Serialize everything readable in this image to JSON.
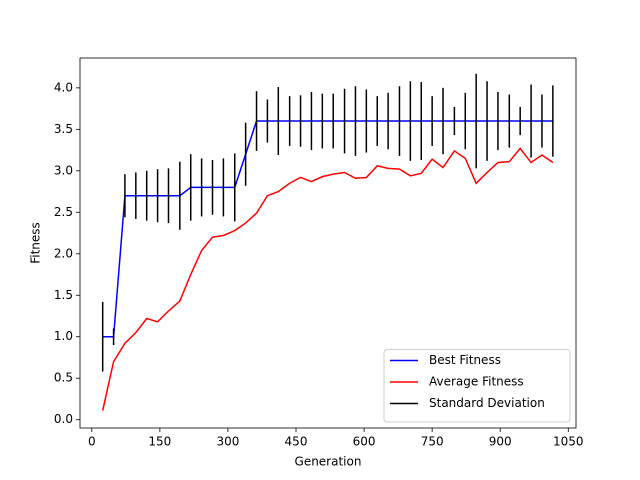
{
  "chart_data": {
    "type": "line",
    "xlabel": "Generation",
    "ylabel": "Fitness",
    "x": [
      24,
      48,
      73,
      97,
      121,
      145,
      169,
      194,
      218,
      242,
      266,
      290,
      315,
      339,
      363,
      387,
      411,
      436,
      460,
      484,
      508,
      532,
      557,
      581,
      605,
      629,
      653,
      678,
      702,
      726,
      750,
      774,
      799,
      823,
      847,
      871,
      895,
      920,
      944,
      968,
      992,
      1016
    ],
    "series": [
      {
        "name": "Best Fitness",
        "color": "#0000ff",
        "type": "line",
        "values": [
          1.0,
          1.0,
          2.7,
          2.7,
          2.7,
          2.7,
          2.7,
          2.7,
          2.8,
          2.8,
          2.8,
          2.8,
          2.8,
          3.2,
          3.6,
          3.6,
          3.6,
          3.6,
          3.6,
          3.6,
          3.6,
          3.6,
          3.6,
          3.6,
          3.6,
          3.6,
          3.6,
          3.6,
          3.6,
          3.6,
          3.6,
          3.6,
          3.6,
          3.6,
          3.6,
          3.6,
          3.6,
          3.6,
          3.6,
          3.6,
          3.6,
          3.6
        ]
      },
      {
        "name": "Average Fitness",
        "color": "#ff0000",
        "type": "line",
        "values": [
          0.11,
          0.7,
          0.92,
          1.05,
          1.22,
          1.18,
          1.31,
          1.43,
          1.75,
          2.04,
          2.2,
          2.22,
          2.28,
          2.37,
          2.49,
          2.7,
          2.75,
          2.85,
          2.92,
          2.87,
          2.93,
          2.96,
          2.98,
          2.91,
          2.92,
          3.06,
          3.03,
          3.02,
          2.94,
          2.97,
          3.14,
          3.04,
          3.24,
          3.15,
          2.85,
          2.98,
          3.1,
          3.11,
          3.27,
          3.1,
          3.19,
          3.1
        ]
      },
      {
        "name": "Standard Deviation",
        "color": "#000000",
        "type": "errorbar",
        "values": [
          0.42,
          0.1,
          0.26,
          0.28,
          0.3,
          0.32,
          0.33,
          0.41,
          0.4,
          0.35,
          0.33,
          0.35,
          0.41,
          0.38,
          0.36,
          0.26,
          0.41,
          0.3,
          0.31,
          0.35,
          0.33,
          0.33,
          0.39,
          0.42,
          0.38,
          0.3,
          0.34,
          0.42,
          0.48,
          0.47,
          0.3,
          0.4,
          0.17,
          0.34,
          0.57,
          0.48,
          0.35,
          0.32,
          0.17,
          0.44,
          0.32,
          0.43
        ]
      }
    ],
    "xlim": [
      -26,
      1067
    ],
    "ylim": [
      -0.1,
      4.36
    ],
    "xticks": [
      0,
      150,
      300,
      450,
      600,
      750,
      900,
      1050
    ],
    "yticks": [
      {
        "value": 0,
        "label": "0.0"
      },
      0.5,
      {
        "value": 1,
        "label": "1.0"
      },
      1.5,
      {
        "value": 2,
        "label": "2.0"
      },
      2.5,
      {
        "value": 3,
        "label": "3.0"
      },
      3.5,
      {
        "value": 4,
        "label": "4.0"
      }
    ],
    "legend": "lower right"
  }
}
